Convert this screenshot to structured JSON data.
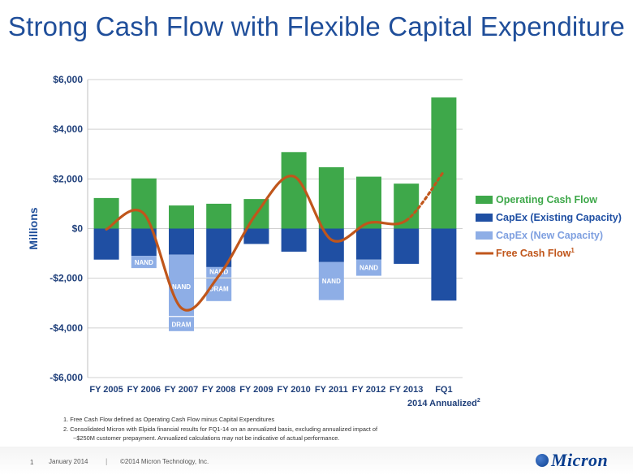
{
  "slide": {
    "title": "Strong Cash Flow with Flexible Capital Expenditure",
    "page_number": "1",
    "date": "January 2014",
    "separator": "|",
    "copyright": "©2014 Micron Technology, Inc.",
    "logo_text": "Micron"
  },
  "footnotes": {
    "note1": "1.  Free Cash Flow defined as Operating Cash Flow minus Capital Expenditures",
    "note2a": "2.  Consolidated Micron with Elpida financial results for FQ1-14 on an annualized basis, excluding annualized impact of",
    "note2b": "~$250M customer prepayment.  Annualized calculations may not be indicative of actual performance."
  },
  "chart_data": {
    "type": "bar",
    "title": "Strong Cash Flow with Flexible Capital Expenditure",
    "ylabel": "Millions",
    "ylim": [
      -6000,
      6000
    ],
    "yticks": [
      6000,
      4000,
      2000,
      0,
      -2000,
      -4000,
      -6000
    ],
    "ytick_labels": [
      "$6,000",
      "$4,000",
      "$2,000",
      "$0",
      "-$2,000",
      "-$4,000",
      "-$6,000"
    ],
    "grid": true,
    "legend_position": "right",
    "categories": [
      "FY 2005",
      "FY 2006",
      "FY 2007",
      "FY 2008",
      "FY 2009",
      "FY 2010",
      "FY 2011",
      "FY 2012",
      "FY 2013",
      "FQ1 2014 Annualized"
    ],
    "category_labels": [
      [
        "FY 2005"
      ],
      [
        "FY 2006"
      ],
      [
        "FY 2007"
      ],
      [
        "FY 2008"
      ],
      [
        "FY 2009"
      ],
      [
        "FY 2010"
      ],
      [
        "FY 2011"
      ],
      [
        "FY 2012"
      ],
      [
        "FY 2013"
      ],
      [
        "FQ1",
        "2014 Annualized",
        "2"
      ]
    ],
    "series": [
      {
        "name": "Operating Cash Flow",
        "color": "#3ea84a",
        "values": [
          1230,
          2020,
          930,
          1000,
          1190,
          3080,
          2470,
          2090,
          1810,
          5280
        ]
      },
      {
        "name": "CapEx (Existing Capacity)",
        "color": "#1f4fa3",
        "values": [
          -1250,
          -1100,
          -1050,
          -1550,
          -620,
          -930,
          -1350,
          -1250,
          -1420,
          -2900
        ]
      },
      {
        "name": "CapEx (New Capacity)",
        "color": "#8eaee6",
        "values": [
          0,
          -490,
          -3080,
          -1370,
          0,
          0,
          -1530,
          -650,
          0,
          0
        ]
      }
    ],
    "new_capacity_segments": [
      {
        "category": "FY 2006",
        "top": -1100,
        "bottom": -1590,
        "label": "NAND",
        "label_at": -1360
      },
      {
        "category": "FY 2007",
        "top": -1050,
        "bottom": -3520,
        "label": "NAND",
        "label_at": -2330
      },
      {
        "category": "FY 2007",
        "top": -3560,
        "bottom": -4130,
        "label": "DRAM",
        "label_at": -3860
      },
      {
        "category": "FY 2008",
        "top": -1550,
        "bottom": -1970,
        "label": "NAND",
        "label_at": -1740
      },
      {
        "category": "FY 2008",
        "top": -2010,
        "bottom": -2920,
        "label": "DRAM",
        "label_at": -2420
      },
      {
        "category": "FY 2011",
        "top": -1350,
        "bottom": -2880,
        "label": "NAND",
        "label_at": -2110
      },
      {
        "category": "FY 2012",
        "top": -1250,
        "bottom": -1900,
        "label": "NAND",
        "label_at": -1570
      }
    ],
    "free_cash_flow": {
      "name": "Free Cash Flow",
      "superscript": "1",
      "color": "#c0561b",
      "values": [
        -30,
        600,
        -3200,
        -1900,
        600,
        2100,
        -450,
        230,
        330,
        2300
      ],
      "dotted_last_segment": true
    },
    "legend": [
      {
        "label": "Operating Cash Flow",
        "color": "#3ea84a",
        "kind": "box"
      },
      {
        "label": "CapEx (Existing Capacity)",
        "color": "#1f4fa3",
        "kind": "box"
      },
      {
        "label": "CapEx (New Capacity)",
        "color": "#8eaee6",
        "kind": "box"
      },
      {
        "label": "Free Cash Flow",
        "color": "#c0561b",
        "kind": "line",
        "superscript": "1"
      }
    ]
  }
}
